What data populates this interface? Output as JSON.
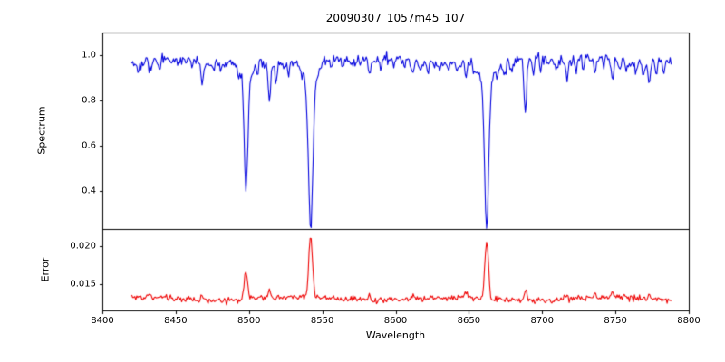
{
  "chart_data": {
    "type": "line",
    "title": "20090307_1057m45_107",
    "xlabel": "Wavelength",
    "xlim": [
      8400,
      8800
    ],
    "xticks": [
      8400,
      8450,
      8500,
      8550,
      8600,
      8650,
      8700,
      8750,
      8800
    ],
    "xtick_labels": [
      "8400",
      "8450",
      "8500",
      "8550",
      "8600",
      "8650",
      "8700",
      "8750",
      "8800"
    ],
    "grid": false,
    "legend": "none",
    "seed": 42,
    "panels": [
      {
        "name": "spectrum",
        "ylabel": "Spectrum",
        "ylim": [
          0.23,
          1.1
        ],
        "yticks": [
          0.4,
          0.6,
          0.8,
          1.0
        ],
        "ytick_labels": [
          "0.4",
          "0.6",
          "0.8",
          "1.0"
        ],
        "color": "#0000dd",
        "x_range": [
          8420,
          8788
        ],
        "n_points": 530,
        "continuum": 0.972,
        "noise_sigma": 0.012,
        "absorption_lines": [
          [
            8424,
            0.05,
            1.0
          ],
          [
            8428,
            0.04,
            0.9
          ],
          [
            8432.5,
            0.055,
            1.1
          ],
          [
            8439,
            0.05,
            1.0
          ],
          [
            8446,
            0.035,
            0.9
          ],
          [
            8452,
            0.03,
            0.9
          ],
          [
            8461,
            0.03,
            0.9
          ],
          [
            8468,
            0.115,
            1.2
          ],
          [
            8476,
            0.03,
            0.9
          ],
          [
            8481,
            0.04,
            0.9
          ],
          [
            8493,
            0.04,
            0.9
          ],
          [
            8498.02,
            0.5,
            1.7
          ],
          [
            8498.02,
            0.07,
            5.5
          ],
          [
            8506,
            0.035,
            0.9
          ],
          [
            8514,
            0.17,
            1.2
          ],
          [
            8518.5,
            0.07,
            1.0
          ],
          [
            8527,
            0.045,
            0.9
          ],
          [
            8536,
            0.035,
            0.9
          ],
          [
            8542.09,
            0.655,
            2.1
          ],
          [
            8542.09,
            0.1,
            6.0
          ],
          [
            8556,
            0.04,
            0.9
          ],
          [
            8564,
            0.03,
            0.9
          ],
          [
            8571,
            0.03,
            0.9
          ],
          [
            8582,
            0.065,
            1.0
          ],
          [
            8590,
            0.03,
            0.9
          ],
          [
            8599,
            0.045,
            0.9
          ],
          [
            8606,
            0.03,
            0.9
          ],
          [
            8611.5,
            0.055,
            1.0
          ],
          [
            8617,
            0.04,
            0.9
          ],
          [
            8621.5,
            0.045,
            0.9
          ],
          [
            8630,
            0.03,
            0.9
          ],
          [
            8636,
            0.03,
            0.9
          ],
          [
            8642,
            0.035,
            0.9
          ],
          [
            8648,
            0.055,
            1.0
          ],
          [
            8654,
            0.035,
            0.9
          ],
          [
            8662.14,
            0.635,
            1.9
          ],
          [
            8662.14,
            0.1,
            5.5
          ],
          [
            8669,
            0.04,
            0.9
          ],
          [
            8674.5,
            0.055,
            1.0
          ],
          [
            8679,
            0.045,
            0.9
          ],
          [
            8688.6,
            0.21,
            1.3
          ],
          [
            8694,
            0.06,
            1.0
          ],
          [
            8699,
            0.04,
            0.9
          ],
          [
            8704,
            0.035,
            0.9
          ],
          [
            8710,
            0.05,
            0.9
          ],
          [
            8717,
            0.075,
            1.0
          ],
          [
            8723,
            0.04,
            0.9
          ],
          [
            8728,
            0.045,
            0.9
          ],
          [
            8736,
            0.055,
            1.0
          ],
          [
            8742,
            0.035,
            0.9
          ],
          [
            8748,
            0.095,
            1.1
          ],
          [
            8753,
            0.04,
            0.9
          ],
          [
            8757.5,
            0.045,
            0.9
          ],
          [
            8764,
            0.055,
            1.0
          ],
          [
            8769,
            0.04,
            0.9
          ],
          [
            8773,
            0.1,
            1.1
          ],
          [
            8778,
            0.04,
            0.9
          ],
          [
            8783,
            0.045,
            0.9
          ]
        ]
      },
      {
        "name": "error",
        "ylabel": "Error",
        "ylim": [
          0.0116,
          0.0222
        ],
        "yticks": [
          0.015,
          0.02
        ],
        "ytick_labels": [
          "0.015",
          "0.020"
        ],
        "color": "#ee0000",
        "x_range": [
          8420,
          8788
        ],
        "n_points": 530,
        "baseline": 0.0131,
        "noise_sigma": 0.0002,
        "peaks": [
          [
            8432.5,
            0.0005,
            1.1
          ],
          [
            8468,
            0.0007,
            1.2
          ],
          [
            8498.02,
            0.0037,
            1.6
          ],
          [
            8514,
            0.0012,
            1.2
          ],
          [
            8542.09,
            0.008,
            1.8
          ],
          [
            8582,
            0.0007,
            1.0
          ],
          [
            8611.5,
            0.0005,
            1.0
          ],
          [
            8648,
            0.0005,
            1.0
          ],
          [
            8662.14,
            0.0075,
            1.7
          ],
          [
            8688.6,
            0.0012,
            1.2
          ],
          [
            8717,
            0.0006,
            1.0
          ],
          [
            8736,
            0.0005,
            1.0
          ],
          [
            8748,
            0.0007,
            1.0
          ],
          [
            8773,
            0.0008,
            1.0
          ]
        ]
      }
    ]
  }
}
